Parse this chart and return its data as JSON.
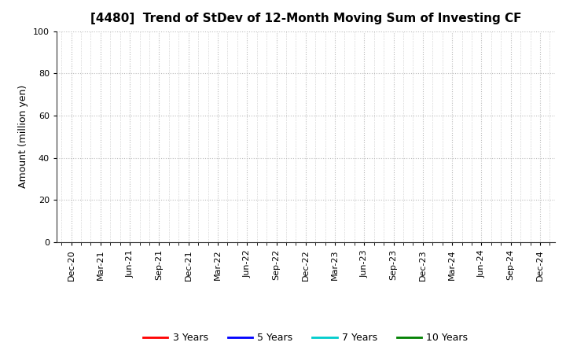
{
  "title": "[4480]  Trend of StDev of 12-Month Moving Sum of Investing CF",
  "ylabel": "Amount (million yen)",
  "ylim": [
    0,
    100
  ],
  "yticks": [
    0,
    20,
    40,
    60,
    80,
    100
  ],
  "x_labels": [
    "Dec-20",
    "Mar-21",
    "Jun-21",
    "Sep-21",
    "Dec-21",
    "Mar-22",
    "Jun-22",
    "Sep-22",
    "Dec-22",
    "Mar-23",
    "Jun-23",
    "Sep-23",
    "Dec-23",
    "Mar-24",
    "Jun-24",
    "Sep-24",
    "Dec-24"
  ],
  "legend_entries": [
    {
      "label": "3 Years",
      "color": "#ff0000"
    },
    {
      "label": "5 Years",
      "color": "#0000ff"
    },
    {
      "label": "7 Years",
      "color": "#00cccc"
    },
    {
      "label": "10 Years",
      "color": "#008000"
    }
  ],
  "grid_color": "#bbbbbb",
  "background_color": "#ffffff",
  "title_fontsize": 11,
  "axis_fontsize": 9,
  "tick_fontsize": 8,
  "legend_fontsize": 9
}
